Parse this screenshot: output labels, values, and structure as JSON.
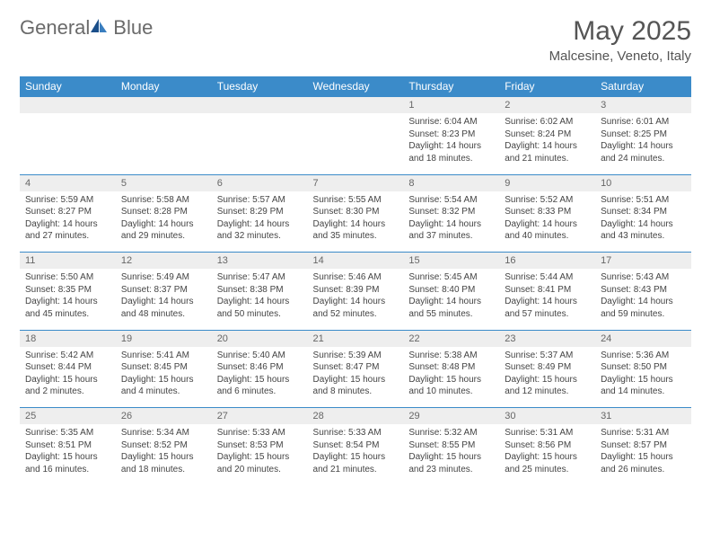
{
  "logo": {
    "text1": "General",
    "text2": "Blue"
  },
  "title": "May 2025",
  "location": "Malcesine, Veneto, Italy",
  "colors": {
    "header_bg": "#3b8bc9",
    "header_text": "#ffffff",
    "daynum_bg": "#eeeeee",
    "border": "#3b8bc9",
    "text": "#444444",
    "logo_gray": "#6a6a6a",
    "logo_blue": "#3a7ebf"
  },
  "day_headers": [
    "Sunday",
    "Monday",
    "Tuesday",
    "Wednesday",
    "Thursday",
    "Friday",
    "Saturday"
  ],
  "weeks": [
    [
      null,
      null,
      null,
      null,
      {
        "n": "1",
        "sr": "Sunrise: 6:04 AM",
        "ss": "Sunset: 8:23 PM",
        "d1": "Daylight: 14 hours",
        "d2": "and 18 minutes."
      },
      {
        "n": "2",
        "sr": "Sunrise: 6:02 AM",
        "ss": "Sunset: 8:24 PM",
        "d1": "Daylight: 14 hours",
        "d2": "and 21 minutes."
      },
      {
        "n": "3",
        "sr": "Sunrise: 6:01 AM",
        "ss": "Sunset: 8:25 PM",
        "d1": "Daylight: 14 hours",
        "d2": "and 24 minutes."
      }
    ],
    [
      {
        "n": "4",
        "sr": "Sunrise: 5:59 AM",
        "ss": "Sunset: 8:27 PM",
        "d1": "Daylight: 14 hours",
        "d2": "and 27 minutes."
      },
      {
        "n": "5",
        "sr": "Sunrise: 5:58 AM",
        "ss": "Sunset: 8:28 PM",
        "d1": "Daylight: 14 hours",
        "d2": "and 29 minutes."
      },
      {
        "n": "6",
        "sr": "Sunrise: 5:57 AM",
        "ss": "Sunset: 8:29 PM",
        "d1": "Daylight: 14 hours",
        "d2": "and 32 minutes."
      },
      {
        "n": "7",
        "sr": "Sunrise: 5:55 AM",
        "ss": "Sunset: 8:30 PM",
        "d1": "Daylight: 14 hours",
        "d2": "and 35 minutes."
      },
      {
        "n": "8",
        "sr": "Sunrise: 5:54 AM",
        "ss": "Sunset: 8:32 PM",
        "d1": "Daylight: 14 hours",
        "d2": "and 37 minutes."
      },
      {
        "n": "9",
        "sr": "Sunrise: 5:52 AM",
        "ss": "Sunset: 8:33 PM",
        "d1": "Daylight: 14 hours",
        "d2": "and 40 minutes."
      },
      {
        "n": "10",
        "sr": "Sunrise: 5:51 AM",
        "ss": "Sunset: 8:34 PM",
        "d1": "Daylight: 14 hours",
        "d2": "and 43 minutes."
      }
    ],
    [
      {
        "n": "11",
        "sr": "Sunrise: 5:50 AM",
        "ss": "Sunset: 8:35 PM",
        "d1": "Daylight: 14 hours",
        "d2": "and 45 minutes."
      },
      {
        "n": "12",
        "sr": "Sunrise: 5:49 AM",
        "ss": "Sunset: 8:37 PM",
        "d1": "Daylight: 14 hours",
        "d2": "and 48 minutes."
      },
      {
        "n": "13",
        "sr": "Sunrise: 5:47 AM",
        "ss": "Sunset: 8:38 PM",
        "d1": "Daylight: 14 hours",
        "d2": "and 50 minutes."
      },
      {
        "n": "14",
        "sr": "Sunrise: 5:46 AM",
        "ss": "Sunset: 8:39 PM",
        "d1": "Daylight: 14 hours",
        "d2": "and 52 minutes."
      },
      {
        "n": "15",
        "sr": "Sunrise: 5:45 AM",
        "ss": "Sunset: 8:40 PM",
        "d1": "Daylight: 14 hours",
        "d2": "and 55 minutes."
      },
      {
        "n": "16",
        "sr": "Sunrise: 5:44 AM",
        "ss": "Sunset: 8:41 PM",
        "d1": "Daylight: 14 hours",
        "d2": "and 57 minutes."
      },
      {
        "n": "17",
        "sr": "Sunrise: 5:43 AM",
        "ss": "Sunset: 8:43 PM",
        "d1": "Daylight: 14 hours",
        "d2": "and 59 minutes."
      }
    ],
    [
      {
        "n": "18",
        "sr": "Sunrise: 5:42 AM",
        "ss": "Sunset: 8:44 PM",
        "d1": "Daylight: 15 hours",
        "d2": "and 2 minutes."
      },
      {
        "n": "19",
        "sr": "Sunrise: 5:41 AM",
        "ss": "Sunset: 8:45 PM",
        "d1": "Daylight: 15 hours",
        "d2": "and 4 minutes."
      },
      {
        "n": "20",
        "sr": "Sunrise: 5:40 AM",
        "ss": "Sunset: 8:46 PM",
        "d1": "Daylight: 15 hours",
        "d2": "and 6 minutes."
      },
      {
        "n": "21",
        "sr": "Sunrise: 5:39 AM",
        "ss": "Sunset: 8:47 PM",
        "d1": "Daylight: 15 hours",
        "d2": "and 8 minutes."
      },
      {
        "n": "22",
        "sr": "Sunrise: 5:38 AM",
        "ss": "Sunset: 8:48 PM",
        "d1": "Daylight: 15 hours",
        "d2": "and 10 minutes."
      },
      {
        "n": "23",
        "sr": "Sunrise: 5:37 AM",
        "ss": "Sunset: 8:49 PM",
        "d1": "Daylight: 15 hours",
        "d2": "and 12 minutes."
      },
      {
        "n": "24",
        "sr": "Sunrise: 5:36 AM",
        "ss": "Sunset: 8:50 PM",
        "d1": "Daylight: 15 hours",
        "d2": "and 14 minutes."
      }
    ],
    [
      {
        "n": "25",
        "sr": "Sunrise: 5:35 AM",
        "ss": "Sunset: 8:51 PM",
        "d1": "Daylight: 15 hours",
        "d2": "and 16 minutes."
      },
      {
        "n": "26",
        "sr": "Sunrise: 5:34 AM",
        "ss": "Sunset: 8:52 PM",
        "d1": "Daylight: 15 hours",
        "d2": "and 18 minutes."
      },
      {
        "n": "27",
        "sr": "Sunrise: 5:33 AM",
        "ss": "Sunset: 8:53 PM",
        "d1": "Daylight: 15 hours",
        "d2": "and 20 minutes."
      },
      {
        "n": "28",
        "sr": "Sunrise: 5:33 AM",
        "ss": "Sunset: 8:54 PM",
        "d1": "Daylight: 15 hours",
        "d2": "and 21 minutes."
      },
      {
        "n": "29",
        "sr": "Sunrise: 5:32 AM",
        "ss": "Sunset: 8:55 PM",
        "d1": "Daylight: 15 hours",
        "d2": "and 23 minutes."
      },
      {
        "n": "30",
        "sr": "Sunrise: 5:31 AM",
        "ss": "Sunset: 8:56 PM",
        "d1": "Daylight: 15 hours",
        "d2": "and 25 minutes."
      },
      {
        "n": "31",
        "sr": "Sunrise: 5:31 AM",
        "ss": "Sunset: 8:57 PM",
        "d1": "Daylight: 15 hours",
        "d2": "and 26 minutes."
      }
    ]
  ]
}
